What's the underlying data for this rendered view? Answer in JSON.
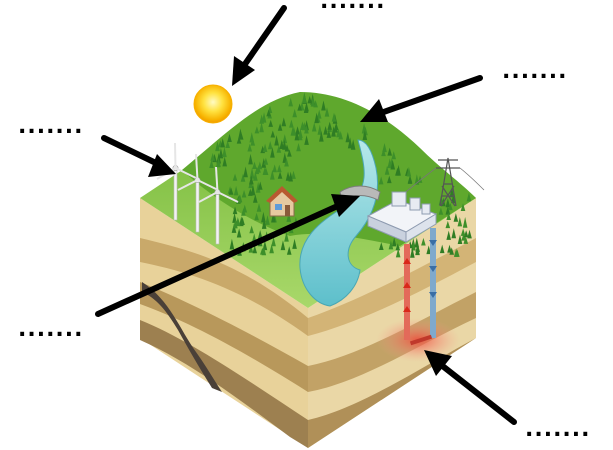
{
  "labels": {
    "top": ".......",
    "upper_right": ".......",
    "left": ".......",
    "mid_left": ".......",
    "lower_right": "......."
  },
  "icons": {
    "sun": "sun-icon",
    "wind_turbines": "wind-turbine-icon",
    "hill_forest": "forest-hill-icon",
    "dam": "dam-icon",
    "house": "house-icon",
    "geothermal_plant": "geothermal-plant-icon",
    "pylon": "power-pylon-icon"
  },
  "colors": {
    "sun_outer": "#f5a900",
    "sun_inner": "#fff176",
    "grass": "#8cc63f",
    "river": "#7fd0d8",
    "soil_light": "#ecd9a6",
    "soil_dark": "#a88d5a",
    "heat_zone": "#f08080",
    "arrow": "#000000"
  }
}
